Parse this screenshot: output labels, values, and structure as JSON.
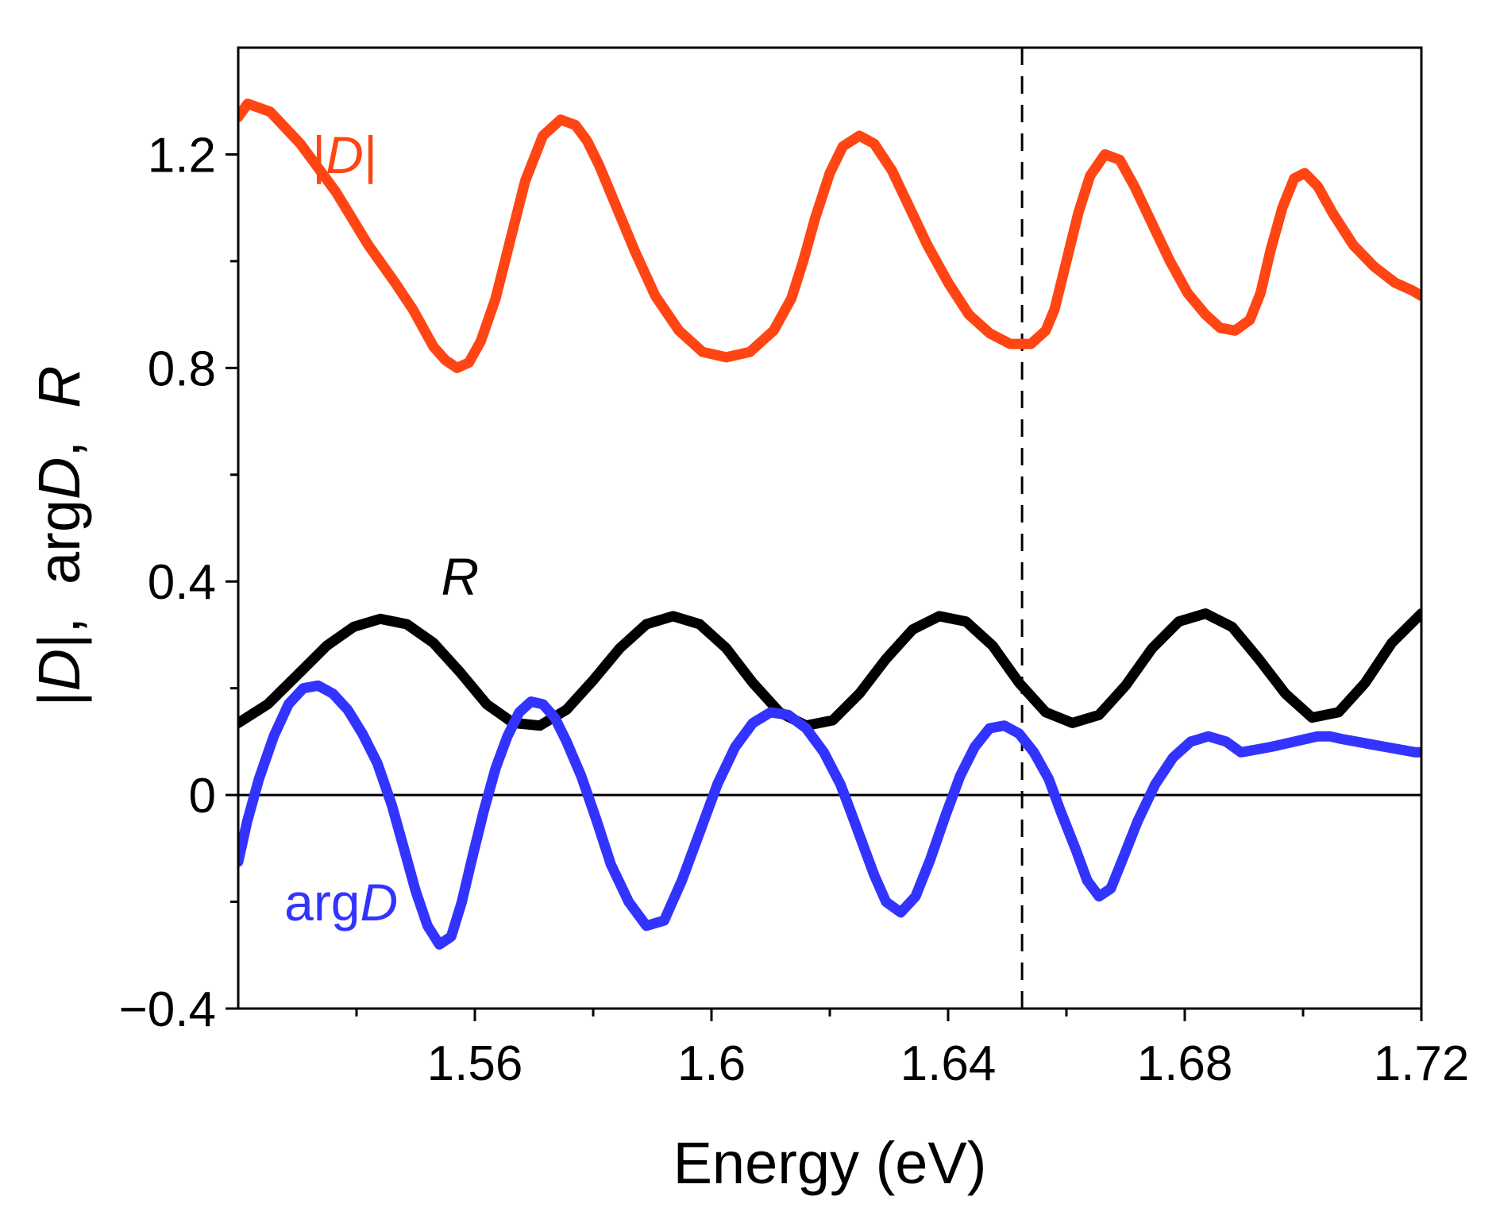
{
  "chart_data": {
    "type": "line",
    "title": "",
    "xlabel": "Energy (eV)",
    "ylabel": {
      "parts": [
        {
          "text": "|",
          "italic": false
        },
        {
          "text": "D",
          "italic": true
        },
        {
          "text": "|,  arg",
          "italic": false
        },
        {
          "text": "D",
          "italic": true
        },
        {
          "text": ",  ",
          "italic": false
        },
        {
          "text": "R",
          "italic": true
        }
      ]
    },
    "xlim": [
      1.52,
      1.72
    ],
    "ylim": [
      -0.4,
      1.4
    ],
    "xticks": [
      1.56,
      1.6,
      1.64,
      1.68,
      1.72
    ],
    "xtick_labels": [
      "1.56",
      "1.6",
      "1.64",
      "1.68",
      "1.72"
    ],
    "x_minor_ticks": [
      1.54,
      1.58,
      1.62,
      1.66,
      1.7
    ],
    "yticks": [
      -0.4,
      0,
      0.4,
      0.8,
      1.2
    ],
    "ytick_labels": [
      "−0.4",
      "0",
      "0.4",
      "0.8",
      "1.2"
    ],
    "y_minor_ticks": [
      -0.2,
      0.2,
      0.6,
      1.0
    ],
    "hline": {
      "y": 0,
      "color": "#000000"
    },
    "vline": {
      "x": 1.6525,
      "style": "dashed",
      "color": "#000000"
    },
    "series": [
      {
        "name": "|D|",
        "label_parts": [
          {
            "text": "|",
            "italic": false
          },
          {
            "text": "D",
            "italic": true
          },
          {
            "text": "|",
            "italic": false
          }
        ],
        "label_anchor": {
          "x": 1.5325,
          "y": 1.165
        },
        "color": "#ff4513",
        "x": [
          1.52,
          1.5216,
          1.5254,
          1.5305,
          1.5365,
          1.542,
          1.5465,
          1.5495,
          1.5515,
          1.553,
          1.555,
          1.557,
          1.559,
          1.561,
          1.5635,
          1.566,
          1.5685,
          1.5715,
          1.5745,
          1.577,
          1.579,
          1.581,
          1.584,
          1.587,
          1.5905,
          1.5945,
          1.5985,
          1.6025,
          1.6065,
          1.6105,
          1.6135,
          1.6155,
          1.6175,
          1.62,
          1.6222,
          1.625,
          1.6275,
          1.6305,
          1.6335,
          1.6365,
          1.64,
          1.6435,
          1.647,
          1.6505,
          1.654,
          1.6565,
          1.658,
          1.66,
          1.662,
          1.664,
          1.6665,
          1.669,
          1.6715,
          1.6745,
          1.6775,
          1.6805,
          1.6835,
          1.686,
          1.6885,
          1.691,
          1.6928,
          1.6945,
          1.6965,
          1.6985,
          1.7003,
          1.7025,
          1.705,
          1.7085,
          1.712,
          1.7155,
          1.7185,
          1.72
        ],
        "y": [
          1.27,
          1.295,
          1.28,
          1.22,
          1.13,
          1.03,
          0.96,
          0.91,
          0.87,
          0.84,
          0.815,
          0.8,
          0.81,
          0.85,
          0.93,
          1.04,
          1.15,
          1.235,
          1.265,
          1.255,
          1.225,
          1.18,
          1.1,
          1.02,
          0.935,
          0.87,
          0.83,
          0.82,
          0.83,
          0.87,
          0.93,
          1.0,
          1.08,
          1.165,
          1.215,
          1.235,
          1.22,
          1.17,
          1.1,
          1.03,
          0.96,
          0.9,
          0.865,
          0.845,
          0.845,
          0.87,
          0.91,
          1.0,
          1.09,
          1.16,
          1.2,
          1.19,
          1.14,
          1.07,
          1.0,
          0.94,
          0.9,
          0.875,
          0.87,
          0.89,
          0.94,
          1.02,
          1.1,
          1.155,
          1.165,
          1.14,
          1.09,
          1.03,
          0.99,
          0.96,
          0.945,
          0.935
        ]
      },
      {
        "name": "R",
        "label_parts": [
          {
            "text": "R",
            "italic": true
          }
        ],
        "label_anchor": {
          "x": 1.5543,
          "y": 0.375
        },
        "color": "#000000",
        "x": [
          1.52,
          1.525,
          1.53,
          1.535,
          1.5395,
          1.544,
          1.5485,
          1.553,
          1.5575,
          1.562,
          1.5665,
          1.571,
          1.5755,
          1.58,
          1.5845,
          1.589,
          1.5935,
          1.598,
          1.6025,
          1.607,
          1.6115,
          1.616,
          1.6205,
          1.625,
          1.6295,
          1.634,
          1.6385,
          1.643,
          1.6475,
          1.652,
          1.6565,
          1.661,
          1.6655,
          1.67,
          1.6745,
          1.679,
          1.6835,
          1.688,
          1.6925,
          1.697,
          1.7015,
          1.706,
          1.7105,
          1.715,
          1.72
        ],
        "y": [
          0.135,
          0.17,
          0.225,
          0.28,
          0.315,
          0.33,
          0.32,
          0.285,
          0.23,
          0.17,
          0.135,
          0.13,
          0.16,
          0.215,
          0.275,
          0.32,
          0.335,
          0.32,
          0.275,
          0.21,
          0.155,
          0.13,
          0.14,
          0.19,
          0.255,
          0.31,
          0.335,
          0.325,
          0.28,
          0.21,
          0.155,
          0.135,
          0.15,
          0.205,
          0.275,
          0.325,
          0.34,
          0.315,
          0.255,
          0.19,
          0.145,
          0.155,
          0.21,
          0.285,
          0.34
        ]
      },
      {
        "name": "argD",
        "label_parts": [
          {
            "text": "arg",
            "italic": false
          },
          {
            "text": "D",
            "italic": true
          }
        ],
        "label_anchor": {
          "x": 1.5278,
          "y": -0.235
        },
        "color": "#3333ff",
        "x": [
          1.52,
          1.5215,
          1.5235,
          1.526,
          1.5285,
          1.531,
          1.5335,
          1.536,
          1.5385,
          1.541,
          1.5435,
          1.546,
          1.548,
          1.55,
          1.552,
          1.554,
          1.556,
          1.5578,
          1.5595,
          1.5615,
          1.5635,
          1.5655,
          1.5675,
          1.5695,
          1.5715,
          1.5735,
          1.5755,
          1.578,
          1.5805,
          1.583,
          1.586,
          1.589,
          1.592,
          1.595,
          1.598,
          1.601,
          1.604,
          1.607,
          1.61,
          1.613,
          1.616,
          1.619,
          1.6218,
          1.6235,
          1.6255,
          1.6275,
          1.6295,
          1.632,
          1.6345,
          1.637,
          1.6395,
          1.642,
          1.6445,
          1.647,
          1.6495,
          1.652,
          1.6545,
          1.657,
          1.659,
          1.6615,
          1.6635,
          1.6655,
          1.6675,
          1.6695,
          1.672,
          1.675,
          1.678,
          1.681,
          1.684,
          1.687,
          1.6895,
          1.692,
          1.6945,
          1.6965,
          1.6985,
          1.7005,
          1.7025,
          1.7045,
          1.7065,
          1.709,
          1.7115,
          1.714,
          1.7165,
          1.719,
          1.72
        ],
        "y": [
          -0.125,
          -0.05,
          0.03,
          0.11,
          0.17,
          0.2,
          0.205,
          0.19,
          0.16,
          0.115,
          0.06,
          -0.02,
          -0.1,
          -0.18,
          -0.245,
          -0.28,
          -0.265,
          -0.2,
          -0.12,
          -0.03,
          0.05,
          0.11,
          0.155,
          0.175,
          0.17,
          0.145,
          0.1,
          0.035,
          -0.045,
          -0.13,
          -0.2,
          -0.245,
          -0.235,
          -0.16,
          -0.07,
          0.02,
          0.09,
          0.135,
          0.155,
          0.15,
          0.125,
          0.08,
          0.02,
          -0.03,
          -0.09,
          -0.15,
          -0.2,
          -0.22,
          -0.19,
          -0.12,
          -0.04,
          0.035,
          0.09,
          0.125,
          0.13,
          0.115,
          0.08,
          0.03,
          -0.03,
          -0.1,
          -0.16,
          -0.19,
          -0.175,
          -0.12,
          -0.05,
          0.02,
          0.07,
          0.1,
          0.11,
          0.1,
          0.08,
          0.085,
          0.09,
          0.095,
          0.1,
          0.105,
          0.11,
          0.11,
          0.105,
          0.1,
          0.095,
          0.09,
          0.085,
          0.08,
          0.08
        ]
      }
    ]
  }
}
